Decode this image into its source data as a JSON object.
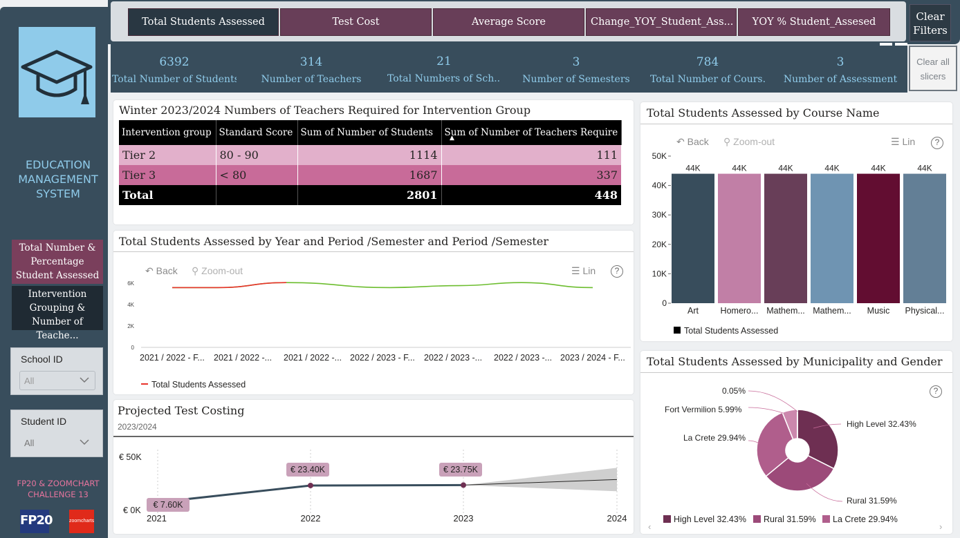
{
  "sidebar": {
    "app_title_line1": "EDUCATION",
    "app_title_line2": "MANAGEMENT",
    "app_title_line3": "SYSTEM",
    "nav_active": [
      "Total Number &",
      "Percentage",
      "Student Assessed"
    ],
    "nav_inactive": [
      "Intervention",
      "Grouping &",
      "Number of Teache..."
    ],
    "school_slicer": {
      "title": "School ID",
      "value": "All"
    },
    "student_slicer": {
      "title": "Student ID",
      "value": "All"
    },
    "challenge_line1": "FP20 & ZOOMCHART",
    "challenge_line2": "CHALLENGE 13",
    "fp20_logo": "FP20",
    "zoomcharts_logo": "zoomcharts"
  },
  "topbar": {
    "buttons": [
      "Total Students Assessed",
      "Test Cost",
      "Average Score",
      "Change_YOY_Student_Ass...",
      "YOY % Student_Assesed"
    ],
    "active_index": 0,
    "clear_filters_line1": "Clear",
    "clear_filters_line2": "Filters"
  },
  "kpis": [
    {
      "value": "6392",
      "label": "Total Number of Students"
    },
    {
      "value": "314",
      "label": "Number of Teachers"
    },
    {
      "value": "21",
      "label": "Total Numbers of Sch..."
    },
    {
      "value": "3",
      "label": "Number of Semesters"
    },
    {
      "value": "784",
      "label": "Total Number of Cours..."
    },
    {
      "value": "3",
      "label": "Number of Assessment"
    }
  ],
  "clear_slicers_line1": "Clear all",
  "clear_slicers_line2": "slicers",
  "matrix": {
    "title": "Winter 2023/2024 Numbers of Teachers Required for Intervention Group",
    "headers": [
      "Intervention group",
      "Standard Score",
      "Sum of Number of Students",
      "Sum of Number of Teachers Require"
    ],
    "rows": [
      {
        "group": "Tier 2",
        "score": "80 - 90",
        "students": "1114",
        "teachers": "111"
      },
      {
        "group": "Tier 3",
        "score": "< 80",
        "students": "1687",
        "teachers": "337"
      }
    ],
    "total": {
      "label": "Total",
      "students": "2801",
      "teachers": "448"
    }
  },
  "toolbar": {
    "back": "Back",
    "zoom_out": "Zoom-out",
    "lin": "Lin",
    "help": "?"
  },
  "colors": {
    "teal": "#384d5c",
    "plum": "#683e58",
    "light_blue": "#8fcbea",
    "tier2": "#e2b0cb",
    "tier3": "#c86b99"
  },
  "chart_data": [
    {
      "type": "line",
      "title": "Total Students Assessed by Year and Period /Semester and Period /Semester",
      "x": [
        "2021 / 2022 - F...",
        "2021 / 2022 -...",
        "2021 / 2022 -...",
        "2022 / 2023 - F...",
        "2022 / 2023 -...",
        "2022 / 2023 -...",
        "2023 / 2024 - F..."
      ],
      "series": [
        {
          "name": "Total Students Assessed",
          "values": [
            6000,
            6000,
            6500,
            6000,
            6200,
            6500,
            6000
          ]
        }
      ],
      "y_ticks": [
        "0",
        "2K",
        "4K",
        "6K"
      ],
      "ylim": [
        0,
        7000
      ],
      "legend": "bottom-left"
    },
    {
      "type": "bar",
      "title": "Total Students Assessed by Course Name",
      "categories": [
        "Art",
        "Homero...",
        "Mathem...",
        "Mathem...",
        "Music",
        "Physical..."
      ],
      "values": [
        44000,
        44000,
        44000,
        44000,
        44000,
        44000
      ],
      "data_labels": [
        "44K",
        "44K",
        "44K",
        "44K",
        "44K",
        "44K"
      ],
      "bar_colors": [
        "#384d5c",
        "#c17fa6",
        "#683e58",
        "#6f94b2",
        "#620d31",
        "#637f96"
      ],
      "y_ticks": [
        "0",
        "10K",
        "20K",
        "30K",
        "40K",
        "50K"
      ],
      "ylim": [
        0,
        50000
      ],
      "legend_label": "Total Students Assessed",
      "legend": "bottom-left"
    },
    {
      "type": "line",
      "title": "Projected Test Costing",
      "subtitle": "2023/2024",
      "x": [
        "2021",
        "2022",
        "2023",
        "2024"
      ],
      "series": [
        {
          "values": [
            7600,
            23400,
            23750,
            29000
          ]
        }
      ],
      "data_labels": [
        "€ 7.60K",
        "€ 23.40K",
        "€ 23.75K"
      ],
      "y_ticks": [
        "€ 0K",
        "€ 50K"
      ],
      "ylim": [
        0,
        50000
      ]
    },
    {
      "type": "pie",
      "title": "Total Students Assessed by Municipality and Gender",
      "slices": [
        {
          "label": "High Level",
          "value": 32.43,
          "color": "#6e2f52"
        },
        {
          "label": "Rural",
          "value": 31.59,
          "color": "#9c4a79"
        },
        {
          "label": "La Crete",
          "value": 29.94,
          "color": "#b05e8c"
        },
        {
          "label": "Fort Vermilion",
          "value": 5.99,
          "color": "#cc88ad"
        },
        {
          "label": "",
          "value": 0.05,
          "color": "#e0c0d1"
        }
      ],
      "callouts": [
        "High Level 32.43%",
        "Rural 31.59%",
        "La Crete 29.94%",
        "Fort Vermilion 5.99%",
        "0.05%"
      ],
      "legend_items": [
        "High Level 32.43%",
        "Rural 31.59%",
        "La Crete 29.94%"
      ],
      "legend": "bottom"
    }
  ]
}
